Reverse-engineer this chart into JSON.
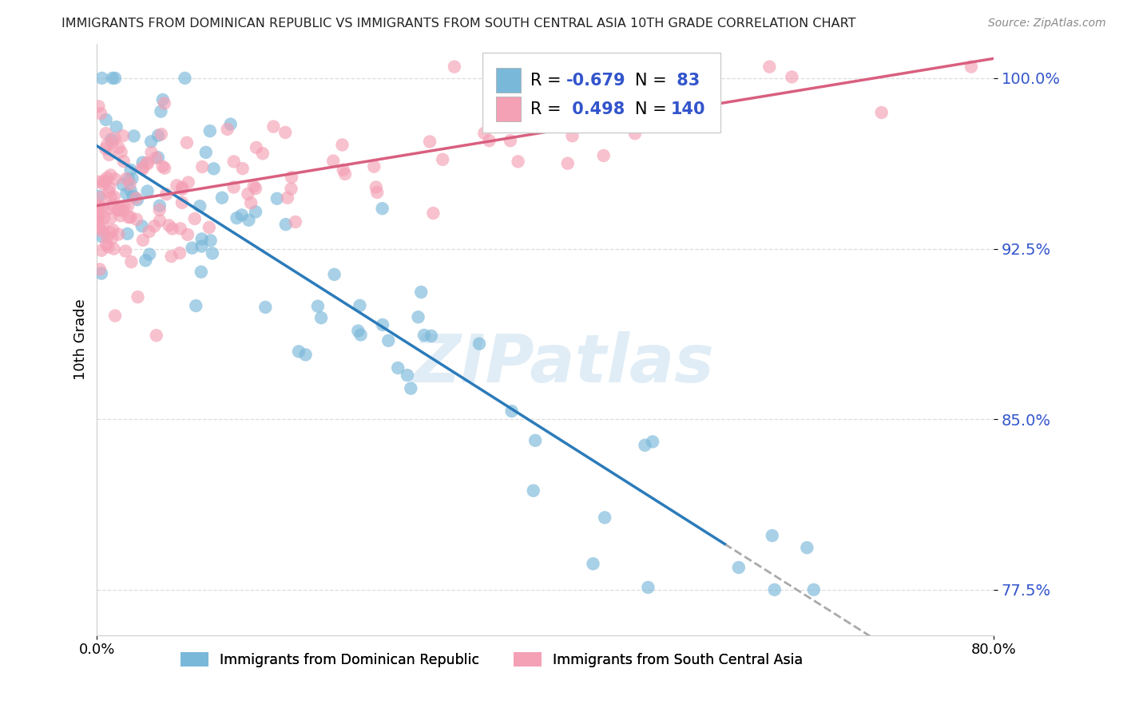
{
  "title": "IMMIGRANTS FROM DOMINICAN REPUBLIC VS IMMIGRANTS FROM SOUTH CENTRAL ASIA 10TH GRADE CORRELATION CHART",
  "source": "Source: ZipAtlas.com",
  "ylabel": "10th Grade",
  "x_min": 0.0,
  "x_max": 0.8,
  "y_min": 0.755,
  "y_max": 1.015,
  "yticks": [
    0.775,
    0.85,
    0.925,
    1.0
  ],
  "ytick_labels": [
    "77.5%",
    "85.0%",
    "92.5%",
    "100.0%"
  ],
  "xtick_labels": [
    "0.0%",
    "80.0%"
  ],
  "r_blue": -0.679,
  "n_blue": 83,
  "r_pink": 0.498,
  "n_pink": 140,
  "blue_color": "#7ab8d9",
  "pink_color": "#f4a0b5",
  "blue_line_color": "#2b7bba",
  "pink_line_color": "#d95f7f",
  "legend_label_blue": "Immigrants from Dominican Republic",
  "legend_label_pink": "Immigrants from South Central Asia",
  "watermark": "ZIPatlas",
  "title_color": "#222222",
  "source_color": "#888888",
  "tick_color": "#3355cc",
  "grid_color": "#dddddd"
}
